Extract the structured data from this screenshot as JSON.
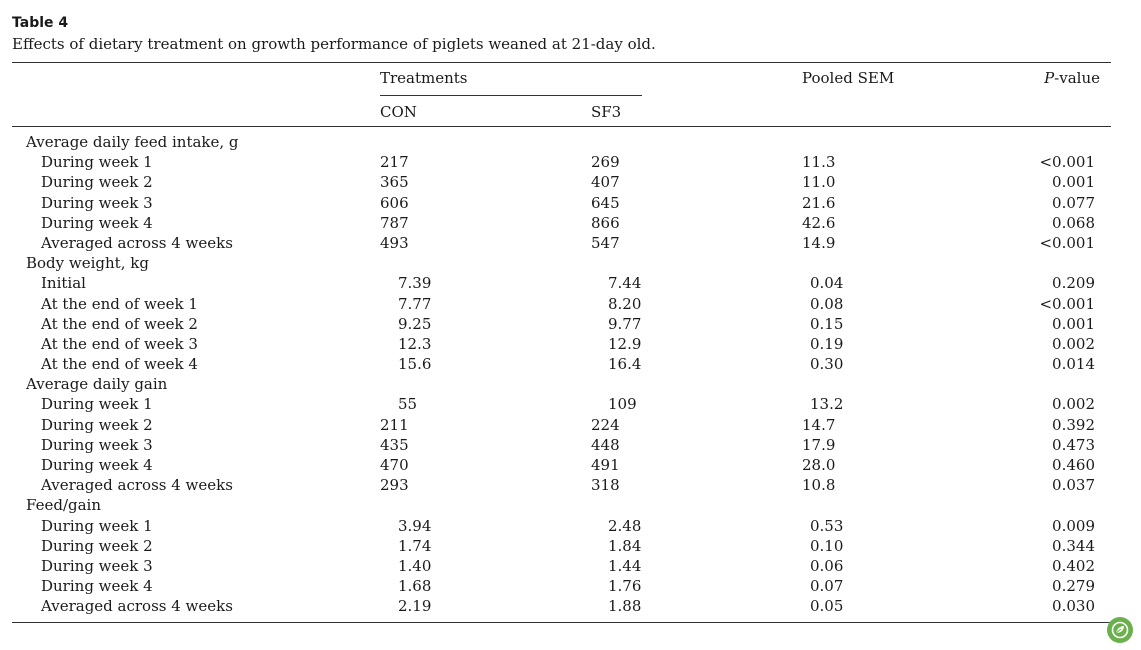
{
  "table": {
    "label": "Table 4",
    "caption": "Effects of dietary treatment on growth performance of piglets weaned at 21-day old.",
    "headers": {
      "treatments": "Treatments",
      "pooled_sem": "Pooled SEM",
      "p_value_italic": "P",
      "p_value_rest": "-value",
      "con": "CON",
      "sf3": "SF3"
    },
    "rows": [
      {
        "type": "section",
        "label": "Average daily feed intake, g"
      },
      {
        "type": "sub",
        "label": "During week 1",
        "con": "217",
        "sf3": "269",
        "sem": "11.3",
        "p": "<0.001"
      },
      {
        "type": "sub",
        "label": "During week 2",
        "con": "365",
        "sf3": "407",
        "sem": "11.0",
        "p": "0.001"
      },
      {
        "type": "sub",
        "label": "During week 3",
        "con": "606",
        "sf3": "645",
        "sem": "21.6",
        "p": "0.077"
      },
      {
        "type": "sub",
        "label": "During week 4",
        "con": "787",
        "sf3": "866",
        "sem": "42.6",
        "p": "0.068"
      },
      {
        "type": "sub",
        "label": "Averaged across 4 weeks",
        "con": "493",
        "sf3": "547",
        "sem": "14.9",
        "p": "<0.001"
      },
      {
        "type": "section",
        "label": "Body weight, kg"
      },
      {
        "type": "sub",
        "dec": true,
        "label": "Initial",
        "con": "7.39",
        "sf3": "7.44",
        "sem": "0.04",
        "p": "0.209"
      },
      {
        "type": "sub",
        "dec": true,
        "label": "At the end of week 1",
        "con": "7.77",
        "sf3": "8.20",
        "sem": "0.08",
        "p": "<0.001"
      },
      {
        "type": "sub",
        "dec": true,
        "label": "At the end of week 2",
        "con": "9.25",
        "sf3": "9.77",
        "sem": "0.15",
        "p": "0.001"
      },
      {
        "type": "sub",
        "dec": true,
        "label": "At the end of week 3",
        "con": "12.3",
        "sf3": "12.9",
        "sem": "0.19",
        "p": "0.002"
      },
      {
        "type": "sub",
        "dec": true,
        "label": "At the end of week 4",
        "con": "15.6",
        "sf3": "16.4",
        "sem": "0.30",
        "p": "0.014"
      },
      {
        "type": "section",
        "label": "Average daily gain"
      },
      {
        "type": "sub",
        "dec": true,
        "label": "During week 1",
        "con": "55",
        "sf3": "109",
        "sem": "13.2",
        "p": "0.002"
      },
      {
        "type": "sub",
        "label": "During week 2",
        "con": "211",
        "sf3": "224",
        "sem": "14.7",
        "p": "0.392"
      },
      {
        "type": "sub",
        "label": "During week 3",
        "con": "435",
        "sf3": "448",
        "sem": "17.9",
        "p": "0.473"
      },
      {
        "type": "sub",
        "label": "During week 4",
        "con": "470",
        "sf3": "491",
        "sem": "28.0",
        "p": "0.460"
      },
      {
        "type": "sub",
        "label": "Averaged across 4 weeks",
        "con": "293",
        "sf3": "318",
        "sem": "10.8",
        "p": "0.037"
      },
      {
        "type": "section",
        "label": "Feed/gain"
      },
      {
        "type": "sub",
        "dec": true,
        "label": "During week 1",
        "con": "3.94",
        "sf3": "2.48",
        "sem": "0.53",
        "p": "0.009"
      },
      {
        "type": "sub",
        "dec": true,
        "label": "During week 2",
        "con": "1.74",
        "sf3": "1.84",
        "sem": "0.10",
        "p": "0.344"
      },
      {
        "type": "sub",
        "dec": true,
        "label": "During week 3",
        "con": "1.40",
        "sf3": "1.44",
        "sem": "0.06",
        "p": "0.402"
      },
      {
        "type": "sub",
        "dec": true,
        "label": "During week 4",
        "con": "1.68",
        "sf3": "1.76",
        "sem": "0.07",
        "p": "0.279"
      },
      {
        "type": "sub",
        "dec": true,
        "label": "Averaged across 4 weeks",
        "con": "2.19",
        "sf3": "1.88",
        "sem": "0.05",
        "p": "0.030"
      }
    ]
  },
  "badge": {
    "icon": "leaf-badge-icon",
    "color": "#6ab04c"
  }
}
